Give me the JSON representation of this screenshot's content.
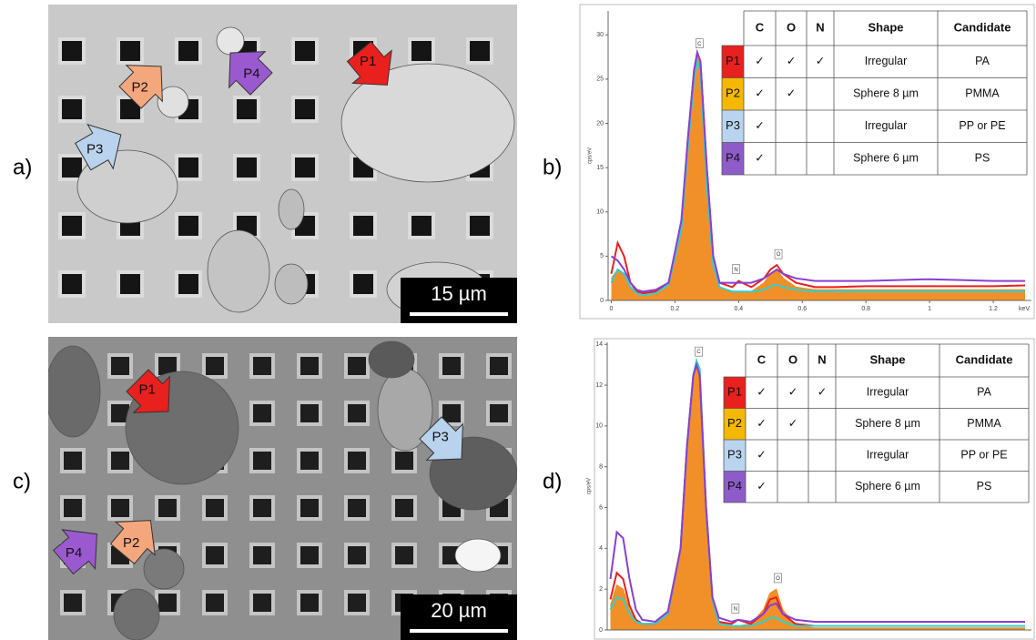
{
  "figure": {
    "images": [
      {
        "label": "a)",
        "scale_bar": "15 µm",
        "arrows": [
          {
            "label": "P1",
            "color": "#e8201e"
          },
          {
            "label": "P2",
            "color": "#f4a77c"
          },
          {
            "label": "P3",
            "color": "#b9d3ee"
          },
          {
            "label": "P4",
            "color": "#9b59d0"
          }
        ]
      },
      {
        "label": "c)",
        "scale_bar": "20 µm",
        "arrows": [
          {
            "label": "P1",
            "color": "#e8201e"
          },
          {
            "label": "P2",
            "color": "#f4a77c"
          },
          {
            "label": "P3",
            "color": "#b9d3ee"
          },
          {
            "label": "P4",
            "color": "#9b59d0"
          }
        ]
      }
    ]
  },
  "chart_data": [
    {
      "type": "line",
      "panel_label": "b)",
      "y_label": "cps/eV",
      "x_label": "keV",
      "x": [
        0,
        0.02,
        0.04,
        0.06,
        0.08,
        0.1,
        0.14,
        0.18,
        0.22,
        0.24,
        0.26,
        0.27,
        0.28,
        0.3,
        0.32,
        0.34,
        0.38,
        0.4,
        0.44,
        0.48,
        0.5,
        0.52,
        0.54,
        0.58,
        0.64,
        0.7,
        0.8,
        0.9,
        1.0,
        1.1,
        1.2,
        1.3
      ],
      "series": [
        {
          "name": "P1",
          "color": "#e8201e",
          "values": [
            3,
            6.5,
            5,
            2,
            1,
            0.8,
            1,
            2,
            8,
            18,
            26,
            28,
            27,
            15,
            5,
            2,
            1.5,
            2.2,
            1.5,
            2.5,
            3.5,
            4,
            3,
            2,
            1.5,
            1.5,
            1.6,
            1.6,
            1.6,
            1.6,
            1.6,
            1.7
          ]
        },
        {
          "name": "P2",
          "color": "#f08a1c",
          "area": true,
          "values": [
            2.5,
            3.5,
            3,
            1.5,
            0.8,
            0.6,
            0.8,
            1.8,
            8,
            17,
            25,
            27.5,
            26.5,
            14,
            4,
            1.5,
            1,
            1,
            1,
            2,
            3,
            3.5,
            2.5,
            1.5,
            1.2,
            1.2,
            1.2,
            1.2,
            1.2,
            1.2,
            1.2,
            1.2
          ]
        },
        {
          "name": "P3",
          "color": "#2fd0d0",
          "values": [
            2,
            3.5,
            3,
            1.5,
            0.8,
            0.6,
            0.8,
            1.8,
            8,
            17,
            25,
            27,
            26,
            13,
            4,
            1.5,
            1,
            1,
            1,
            1.2,
            1.6,
            1.8,
            1.5,
            1.2,
            1,
            1,
            1,
            1,
            1,
            1,
            1,
            1
          ]
        },
        {
          "name": "P4",
          "color": "#8a3fd0",
          "values": [
            5,
            4.5,
            3.5,
            2,
            1.2,
            1,
            1.2,
            2,
            9,
            18,
            26,
            28,
            27,
            15,
            5,
            2,
            2,
            2,
            2,
            2.5,
            3,
            3.5,
            3,
            2.5,
            2.2,
            2.2,
            2.2,
            2.3,
            2.4,
            2.3,
            2.2,
            2.2
          ]
        }
      ],
      "xlim": [
        -0.01,
        1.32
      ],
      "ylim": [
        0,
        32.7
      ],
      "xticks": [
        0,
        0.2,
        0.4,
        0.6,
        0.8,
        1,
        1.2
      ],
      "yticks": [
        0,
        5,
        10,
        15,
        20,
        25,
        30
      ],
      "annotations": [
        {
          "text": "C",
          "x": 0.277,
          "y": 28
        },
        {
          "text": "N",
          "x": 0.392,
          "y": 2.5
        },
        {
          "text": "O",
          "x": 0.525,
          "y": 4.2
        }
      ],
      "table": {
        "columns": [
          "C",
          "O",
          "N",
          "Shape",
          "Candidate"
        ],
        "row_colors": [
          "#e8201e",
          "#f5b800",
          "#b8d4ee",
          "#8e5cc8"
        ],
        "rows": [
          [
            "P1",
            "✓",
            "✓",
            "✓",
            "Irregular",
            "PA"
          ],
          [
            "P2",
            "✓",
            "✓",
            null,
            "Sphere 8 µm",
            "PMMA"
          ],
          [
            "P3",
            "✓",
            null,
            null,
            "Irregular",
            "PP or PE"
          ],
          [
            "P4",
            "✓",
            null,
            null,
            "Sphere 6 µm",
            "PS"
          ]
        ]
      }
    },
    {
      "type": "line",
      "panel_label": "d)",
      "y_label": "cps/eV",
      "x": [
        0,
        0.02,
        0.04,
        0.06,
        0.08,
        0.1,
        0.14,
        0.18,
        0.22,
        0.24,
        0.26,
        0.27,
        0.28,
        0.3,
        0.32,
        0.34,
        0.38,
        0.4,
        0.44,
        0.48,
        0.5,
        0.52,
        0.54,
        0.58,
        0.64,
        0.7,
        0.8,
        0.9,
        1.0,
        1.1,
        1.2,
        1.3
      ],
      "series": [
        {
          "name": "P1",
          "color": "#e8201e",
          "values": [
            1.5,
            2.8,
            2.5,
            1.2,
            0.5,
            0.3,
            0.3,
            0.8,
            4,
            9,
            12.5,
            13,
            12.5,
            6,
            1.5,
            0.4,
            0.3,
            0.5,
            0.3,
            0.8,
            1.5,
            1.6,
            0.8,
            0.3,
            0.2,
            0.2,
            0.2,
            0.2,
            0.2,
            0.2,
            0.2,
            0.2
          ]
        },
        {
          "name": "P2",
          "color": "#f08a1c",
          "area": true,
          "values": [
            1.2,
            2.2,
            2,
            1,
            0.4,
            0.3,
            0.3,
            0.8,
            4,
            9,
            12.5,
            13,
            12.5,
            6,
            1.5,
            0.4,
            0.2,
            0.2,
            0.3,
            1,
            1.8,
            2,
            1,
            0.2,
            0.1,
            0.1,
            0.1,
            0.1,
            0.1,
            0.1,
            0.1,
            0.1
          ]
        },
        {
          "name": "P3",
          "color": "#2fd0d0",
          "values": [
            1,
            1.6,
            1.5,
            0.8,
            0.4,
            0.3,
            0.3,
            0.8,
            4,
            9,
            12.5,
            13.2,
            12.8,
            6,
            1.5,
            0.3,
            0.2,
            0.2,
            0.2,
            0.4,
            0.6,
            0.6,
            0.4,
            0.2,
            0.2,
            0.2,
            0.2,
            0.2,
            0.2,
            0.2,
            0.2,
            0.2
          ]
        },
        {
          "name": "P4",
          "color": "#8a3fd0",
          "values": [
            2.5,
            4.8,
            4.5,
            2.5,
            1,
            0.5,
            0.4,
            0.9,
            4,
            9,
            12.5,
            13,
            12.5,
            6,
            1.6,
            0.6,
            0.4,
            0.5,
            0.4,
            0.8,
            1.2,
            1.3,
            0.8,
            0.5,
            0.4,
            0.4,
            0.4,
            0.4,
            0.4,
            0.4,
            0.4,
            0.4
          ]
        }
      ],
      "xlim": [
        -0.01,
        1.32
      ],
      "ylim": [
        0,
        14.1
      ],
      "yticks": [
        0,
        2,
        4,
        6,
        8,
        10,
        12,
        14
      ],
      "annotations": [
        {
          "text": "C",
          "x": 0.277,
          "y": 13.2
        },
        {
          "text": "N",
          "x": 0.392,
          "y": 0.6
        },
        {
          "text": "O",
          "x": 0.525,
          "y": 2.1
        }
      ],
      "table": {
        "columns": [
          "C",
          "O",
          "N",
          "Shape",
          "Candidate"
        ],
        "row_colors": [
          "#e8201e",
          "#f5b800",
          "#b8d4ee",
          "#8e5cc8"
        ],
        "rows": [
          [
            "P1",
            "✓",
            "✓",
            "✓",
            "Irregular",
            "PA"
          ],
          [
            "P2",
            "✓",
            "✓",
            null,
            "Sphere 8 µm",
            "PMMA"
          ],
          [
            "P3",
            "✓",
            null,
            null,
            "Irregular",
            "PP or PE"
          ],
          [
            "P4",
            "✓",
            null,
            null,
            "Sphere 6 µm",
            "PS"
          ]
        ]
      }
    }
  ]
}
